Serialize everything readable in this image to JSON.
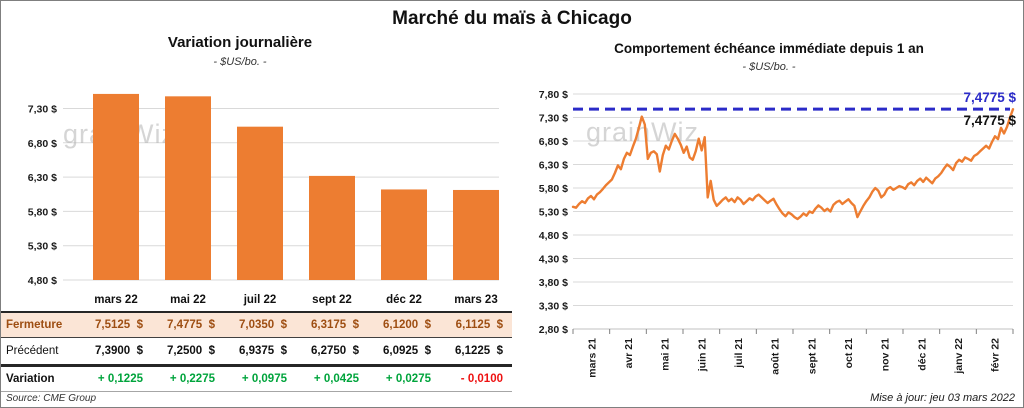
{
  "page": {
    "title": "Marché du maïs à Chicago",
    "updated": "Mise à jour: jeu 03 mars 2022",
    "source": "Source: CME Group",
    "watermark": "grainWiz"
  },
  "colors": {
    "orange": "#ed7d31",
    "peach": "#fbe5d6",
    "brown": "#9e4e12",
    "green": "#00a43c",
    "red": "#ee1111",
    "blue": "#2b2bc8",
    "grid": "#d9d9d9"
  },
  "chart_data": [
    {
      "id": "variation-journaliere",
      "type": "bar",
      "title": "Variation journalière",
      "subtitle": "- $US/bo. -",
      "categories": [
        "mars 22",
        "mai 22",
        "juil 22",
        "sept 22",
        "déc 22",
        "mars 23"
      ],
      "values": [
        7.5125,
        7.4775,
        7.035,
        6.3175,
        6.12,
        6.1125
      ],
      "bar_color": "#ed7d31",
      "baseline": 4.8,
      "ylim": [
        4.8,
        7.6
      ],
      "yticks": [
        4.8,
        5.3,
        5.8,
        6.3,
        6.8,
        7.3
      ],
      "ytick_labels": [
        "4,80 $",
        "5,30 $",
        "5,80 $",
        "6,30 $",
        "6,80 $",
        "7,30 $"
      ],
      "grid": true,
      "legend": false
    },
    {
      "id": "echeance-immediate-1an",
      "type": "line",
      "title": "Comportement échéance immédiate depuis 1 an",
      "subtitle": "- $US/bo. -",
      "x_labels": [
        "mars 21",
        "avr 21",
        "mai 21",
        "juin 21",
        "juil 21",
        "août 21",
        "sept 21",
        "oct 21",
        "nov 21",
        "déc 21",
        "janv 22",
        "févr 22"
      ],
      "line_color": "#ed7d31",
      "ylim": [
        2.8,
        7.8
      ],
      "yticks": [
        2.8,
        3.3,
        3.8,
        4.3,
        4.8,
        5.3,
        5.8,
        6.3,
        6.8,
        7.3,
        7.8
      ],
      "ytick_labels": [
        "2,80 $",
        "3,30 $",
        "3,80 $",
        "4,30 $",
        "4,80 $",
        "5,30 $",
        "5,80 $",
        "6,30 $",
        "6,80 $",
        "7,30 $",
        "7,80 $"
      ],
      "grid": true,
      "legend": false,
      "reference_line": {
        "value": 7.4775,
        "label_above": "7,4775 $",
        "label_below": "7,4775 $",
        "color": "#2b2bc8",
        "style": "dashed"
      },
      "values": [
        5.4,
        5.38,
        5.46,
        5.52,
        5.48,
        5.58,
        5.63,
        5.56,
        5.66,
        5.71,
        5.78,
        5.86,
        5.92,
        5.98,
        6.12,
        6.28,
        6.2,
        6.42,
        6.55,
        6.5,
        6.68,
        6.85,
        7.08,
        7.32,
        7.15,
        6.42,
        6.55,
        6.58,
        6.52,
        6.15,
        6.5,
        6.7,
        6.62,
        6.8,
        6.95,
        6.85,
        6.72,
        6.55,
        6.68,
        6.45,
        6.4,
        6.58,
        6.85,
        6.6,
        6.88,
        5.6,
        5.95,
        5.55,
        5.42,
        5.48,
        5.55,
        5.6,
        5.52,
        5.57,
        5.5,
        5.6,
        5.55,
        5.46,
        5.52,
        5.58,
        5.54,
        5.62,
        5.66,
        5.6,
        5.54,
        5.48,
        5.53,
        5.57,
        5.45,
        5.35,
        5.26,
        5.2,
        5.28,
        5.24,
        5.18,
        5.14,
        5.19,
        5.26,
        5.21,
        5.3,
        5.27,
        5.36,
        5.43,
        5.38,
        5.31,
        5.36,
        5.3,
        5.44,
        5.5,
        5.53,
        5.46,
        5.51,
        5.56,
        5.48,
        5.42,
        5.18,
        5.3,
        5.42,
        5.52,
        5.6,
        5.72,
        5.8,
        5.74,
        5.6,
        5.66,
        5.78,
        5.82,
        5.76,
        5.8,
        5.84,
        5.82,
        5.78,
        5.88,
        5.92,
        5.86,
        5.95,
        6.0,
        5.93,
        6.02,
        5.96,
        5.9,
        6.0,
        6.05,
        6.12,
        6.22,
        6.3,
        6.25,
        6.18,
        6.33,
        6.4,
        6.36,
        6.45,
        6.42,
        6.38,
        6.48,
        6.52,
        6.58,
        6.64,
        6.7,
        6.64,
        6.78,
        6.9,
        6.84,
        7.08,
        6.96,
        7.1,
        7.3,
        7.4775
      ]
    }
  ],
  "table": {
    "header": [
      "mars 22",
      "mai 22",
      "juil 22",
      "sept 22",
      "déc 22",
      "mars 23"
    ],
    "rows": [
      {
        "label": "Fermeture",
        "values": [
          "7,5125  $",
          "7,4775  $",
          "7,0350  $",
          "6,3175  $",
          "6,1200  $",
          "6,1125  $"
        ]
      },
      {
        "label": "Précédent",
        "values": [
          "7,3900  $",
          "7,2500  $",
          "6,9375  $",
          "6,2750  $",
          "6,0925  $",
          "6,1225  $"
        ]
      },
      {
        "label": "Variation",
        "values": [
          "+ 0,1225",
          "+ 0,2275",
          "+ 0,0975",
          "+ 0,0425",
          "+ 0,0275",
          "- 0,0100"
        ],
        "value_colors": [
          "pos",
          "pos",
          "pos",
          "pos",
          "pos",
          "neg"
        ]
      }
    ]
  }
}
